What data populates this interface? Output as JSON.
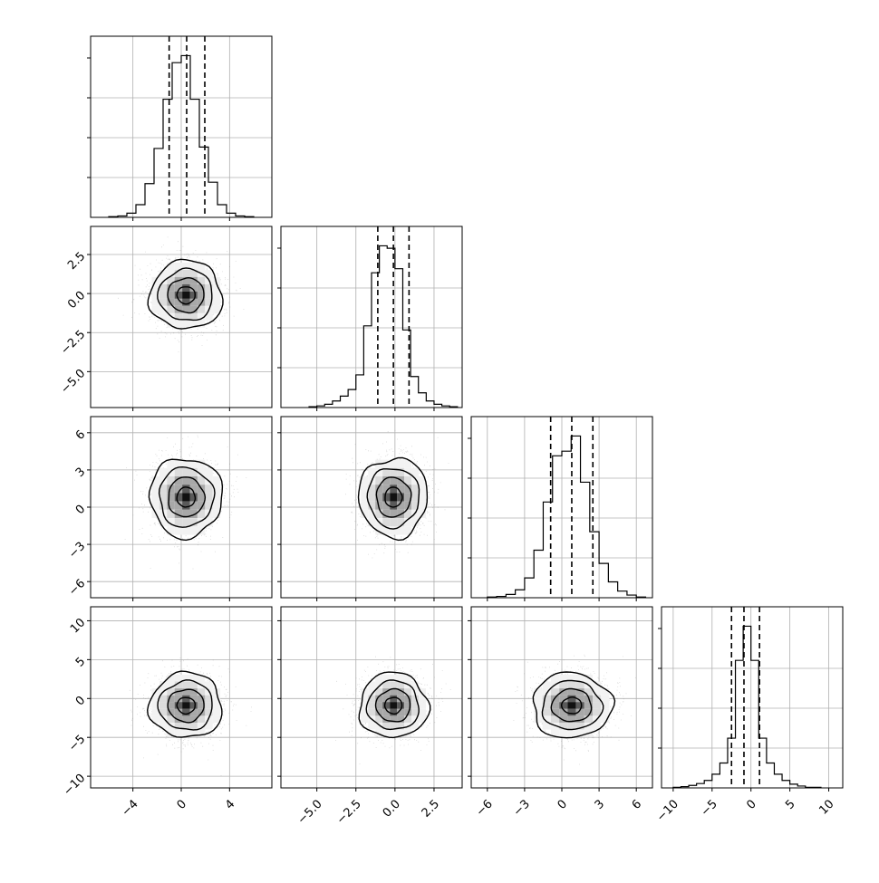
{
  "chart_data": {
    "type": "corner",
    "colors": {
      "line": "#000000",
      "grid": "#b0b0b0",
      "points": "#7f7f7f",
      "frame": "#000000"
    },
    "parameters": [
      {
        "index": 0,
        "range": [
          -7.5,
          7.5
        ],
        "ticks": [
          -4,
          0,
          4
        ],
        "tick_labels": [
          "−4",
          "0",
          "4"
        ],
        "quantiles": [
          -1.0,
          0.45,
          1.95
        ],
        "hist_edges": [
          -6,
          -5.25,
          -4.5,
          -3.75,
          -3,
          -2.25,
          -1.5,
          -0.75,
          0,
          0.75,
          1.5,
          2.25,
          3,
          3.75,
          4.5,
          5.25,
          6
        ],
        "hist_counts": [
          1,
          2,
          6,
          18,
          48,
          98,
          168,
          220,
          230,
          168,
          100,
          50,
          18,
          6,
          2,
          1
        ],
        "center": 0.4,
        "sigma": 1.5
      },
      {
        "index": 1,
        "range": [
          -7.3,
          4.3
        ],
        "ticks": [
          -5.0,
          -2.5,
          0.0,
          2.5
        ],
        "tick_labels": [
          "−5.0",
          "−2.5",
          "0.0",
          "2.5"
        ],
        "quantiles": [
          -1.1,
          -0.1,
          0.9
        ],
        "hist_edges": [
          -5.5,
          -5,
          -4.5,
          -4,
          -3.5,
          -3,
          -2.5,
          -2,
          -1.5,
          -1,
          -0.5,
          0,
          0.5,
          1,
          1.5,
          2,
          2.5,
          3,
          3.5,
          4
        ],
        "hist_counts": [
          1,
          2,
          4,
          8,
          14,
          22,
          40,
          100,
          165,
          198,
          195,
          170,
          95,
          38,
          18,
          8,
          4,
          2,
          1
        ],
        "center": -0.1,
        "sigma": 1.1
      },
      {
        "index": 2,
        "range": [
          -7.3,
          7.3
        ],
        "ticks": [
          -6,
          -3,
          0,
          3,
          6
        ],
        "tick_labels": [
          "−6",
          "−3",
          "0",
          "3",
          "6"
        ],
        "quantiles": [
          -0.9,
          0.8,
          2.5
        ],
        "hist_edges": [
          -6,
          -5.25,
          -4.5,
          -3.75,
          -3,
          -2.25,
          -1.5,
          -0.75,
          0,
          0.75,
          1.5,
          2.25,
          3,
          3.75,
          4.5,
          5.25,
          6,
          6.75
        ],
        "hist_counts": [
          1,
          2,
          5,
          12,
          30,
          72,
          145,
          215,
          222,
          245,
          175,
          100,
          52,
          24,
          10,
          4,
          1
        ],
        "center": 0.8,
        "sigma": 1.6
      },
      {
        "index": 3,
        "range": [
          -11.5,
          11.8
        ],
        "ticks": [
          -10,
          -5,
          0,
          5,
          10
        ],
        "tick_labels": [
          "−10",
          "−5",
          "0",
          "5",
          "10"
        ],
        "ticks_y": [
          -10,
          -5,
          0,
          5,
          10
        ],
        "tick_labels_y": [
          "−10",
          "−5",
          "0",
          "5",
          "10"
        ],
        "quantiles": [
          -2.5,
          -0.9,
          1.1
        ],
        "hist_edges": [
          -10,
          -9,
          -8,
          -7,
          -6,
          -5,
          -4,
          -3,
          -2,
          -1,
          0,
          1,
          2,
          3,
          4,
          5,
          6,
          7,
          8,
          9
        ],
        "hist_counts": [
          1,
          2,
          4,
          7,
          12,
          22,
          40,
          80,
          205,
          260,
          205,
          80,
          40,
          22,
          12,
          6,
          3,
          1,
          1
        ],
        "center": -0.9,
        "sigma": 2.1
      }
    ],
    "pair_ticks_y": {
      "1": {
        "ticks": [
          -5.0,
          -2.5,
          0.0,
          2.5
        ],
        "tick_labels": [
          "−5.0",
          "−2.5",
          "0.0",
          "2.5"
        ]
      },
      "2": {
        "ticks": [
          -6,
          -3,
          0,
          3,
          6
        ],
        "tick_labels": [
          "−6",
          "−3",
          "0",
          "3",
          "6"
        ]
      },
      "3": {
        "ticks": [
          -10,
          -5,
          0,
          5,
          10
        ],
        "tick_labels": [
          "−10",
          "−5",
          "0",
          "5",
          "10"
        ]
      }
    },
    "hist_grid_fractions": [
      0.25,
      0.5,
      0.75
    ],
    "contour_levels_sigma": [
      0.5,
      1.0,
      1.5,
      2.0
    ],
    "grid": true,
    "xlabels": [
      "",
      "",
      "",
      ""
    ],
    "ylabels": [
      "",
      "",
      "",
      ""
    ],
    "title": ""
  }
}
